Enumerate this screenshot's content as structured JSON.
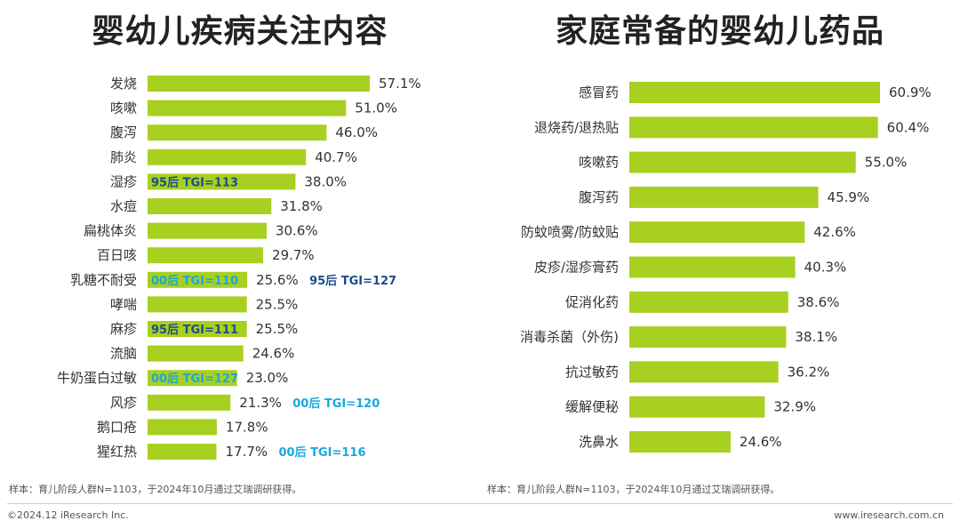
{
  "colors": {
    "bar": "#a8d020",
    "tgi_95_text": "#1e4d8c",
    "tgi_00_text": "#1aa7e0",
    "tgi_95_highlight": "#a8d020",
    "tgi_00_highlight": "#a8d020"
  },
  "chart_data": [
    {
      "type": "bar",
      "orientation": "horizontal",
      "title": "婴幼儿疾病关注内容",
      "categories": [
        "发烧",
        "咳嗽",
        "腹泻",
        "肺炎",
        "湿疹",
        "水痘",
        "扁桃体炎",
        "百日咳",
        "乳糖不耐受",
        "哮喘",
        "麻疹",
        "流脑",
        "牛奶蛋白过敏",
        "风疹",
        "鹅口疮",
        "猩红热"
      ],
      "values": [
        57.1,
        51.0,
        46.0,
        40.7,
        38.0,
        31.8,
        30.6,
        29.7,
        25.6,
        25.5,
        25.5,
        24.6,
        23.0,
        21.3,
        17.8,
        17.7
      ],
      "value_labels": [
        "57.1%",
        "51.0%",
        "46.0%",
        "40.7%",
        "38.0%",
        "31.8%",
        "30.6%",
        "29.7%",
        "25.6%",
        "25.5%",
        "25.5%",
        "24.6%",
        "23.0%",
        "21.3%",
        "17.8%",
        "17.7%"
      ],
      "annotations": [
        {
          "category": "湿疹",
          "text": "95后 TGI=113",
          "style": "95",
          "placement": "inside"
        },
        {
          "category": "乳糖不耐受",
          "text": "00后 TGI=110",
          "style": "00",
          "placement": "inside"
        },
        {
          "category": "乳糖不耐受",
          "text": "95后 TGI=127",
          "style": "95",
          "placement": "after"
        },
        {
          "category": "麻疹",
          "text": "95后 TGI=111",
          "style": "95",
          "placement": "inside"
        },
        {
          "category": "牛奶蛋白过敏",
          "text": "00后 TGI=127",
          "style": "00",
          "placement": "inside"
        },
        {
          "category": "风疹",
          "text": "00后 TGI=120",
          "style": "00",
          "placement": "after"
        },
        {
          "category": "猩红热",
          "text": "00后 TGI=116",
          "style": "00",
          "placement": "after"
        }
      ],
      "xlim": [
        0,
        60
      ],
      "grid": false,
      "note": "样本：育儿阶段人群N=1103，于2024年10月通过艾瑞调研获得。"
    },
    {
      "type": "bar",
      "orientation": "horizontal",
      "title": "家庭常备的婴幼儿药品",
      "categories": [
        "感冒药",
        "退烧药/退热贴",
        "咳嗽药",
        "腹泻药",
        "防蚊喷雾/防蚊贴",
        "皮疹/湿疹膏药",
        "促消化药",
        "消毒杀菌（外伤)",
        "抗过敏药",
        "缓解便秘",
        "洗鼻水"
      ],
      "values": [
        60.9,
        60.4,
        55.0,
        45.9,
        42.6,
        40.3,
        38.6,
        38.1,
        36.2,
        32.9,
        24.6
      ],
      "value_labels": [
        "60.9%",
        "60.4%",
        "55.0%",
        "45.9%",
        "42.6%",
        "40.3%",
        "38.6%",
        "38.1%",
        "36.2%",
        "32.9%",
        "24.6%"
      ],
      "xlim": [
        0,
        62
      ],
      "grid": false,
      "note": "样本：育儿阶段人群N=1103，于2024年10月通过艾瑞调研获得。"
    }
  ],
  "footer": {
    "copyright": "©2024.12 iResearch Inc.",
    "website": "www.iresearch.com.cn"
  }
}
